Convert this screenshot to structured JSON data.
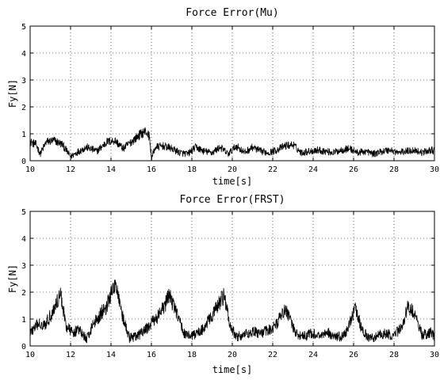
{
  "chart_data": [
    {
      "type": "line",
      "title": "Force Error(Mu)",
      "xlabel": "time[s]",
      "ylabel": "Fy[N]",
      "xlim": [
        10,
        30
      ],
      "ylim": [
        0,
        5
      ],
      "xticks": [
        10,
        12,
        14,
        16,
        18,
        20,
        22,
        24,
        26,
        28,
        30
      ],
      "yticks": [
        0,
        1,
        2,
        3,
        4,
        5
      ],
      "grid": true,
      "color": "#000000",
      "noise": 0.18,
      "series": [
        {
          "x": [
            10,
            10.3,
            10.5,
            10.8,
            11.2,
            11.6,
            12.0,
            12.4,
            12.8,
            13.3,
            13.8,
            14.2,
            14.6,
            15.0,
            15.4,
            15.7,
            15.9,
            16.0,
            16.2,
            16.6,
            17.0,
            17.4,
            17.8,
            18.2,
            18.6,
            19.0,
            19.4,
            19.8,
            20.2,
            20.6,
            21.0,
            21.4,
            21.8,
            22.2,
            22.6,
            23.0,
            23.4,
            23.8,
            24.2,
            24.6,
            25.0,
            25.4,
            25.8,
            26.2,
            26.6,
            27.0,
            27.4,
            27.8,
            28.2,
            28.6,
            29.0,
            29.4,
            29.8,
            30
          ],
          "y": [
            0.7,
            0.6,
            0.25,
            0.7,
            0.75,
            0.6,
            0.15,
            0.35,
            0.5,
            0.35,
            0.7,
            0.75,
            0.45,
            0.7,
            0.95,
            1.1,
            0.9,
            0.1,
            0.5,
            0.55,
            0.45,
            0.3,
            0.25,
            0.5,
            0.35,
            0.3,
            0.5,
            0.25,
            0.55,
            0.3,
            0.5,
            0.35,
            0.3,
            0.4,
            0.55,
            0.6,
            0.3,
            0.35,
            0.4,
            0.35,
            0.3,
            0.4,
            0.45,
            0.3,
            0.35,
            0.25,
            0.35,
            0.4,
            0.3,
            0.35,
            0.4,
            0.3,
            0.4,
            0.35
          ]
        }
      ]
    },
    {
      "type": "line",
      "title": "Force Error(FRST)",
      "xlabel": "time[s]",
      "ylabel": "Fy[N]",
      "xlim": [
        10,
        30
      ],
      "ylim": [
        0,
        5
      ],
      "xticks": [
        10,
        12,
        14,
        16,
        18,
        20,
        22,
        24,
        26,
        28,
        30
      ],
      "yticks": [
        0,
        1,
        2,
        3,
        4,
        5
      ],
      "grid": true,
      "color": "#000000",
      "noise": 0.25,
      "series": [
        {
          "x": [
            10,
            10.4,
            10.8,
            11.2,
            11.5,
            11.8,
            12.1,
            12.4,
            12.8,
            13.1,
            13.5,
            13.8,
            14.1,
            14.3,
            14.6,
            14.9,
            15.3,
            15.7,
            16.2,
            16.6,
            16.9,
            17.2,
            17.6,
            18.0,
            18.5,
            18.9,
            19.3,
            19.6,
            19.9,
            20.2,
            20.6,
            21.0,
            21.4,
            21.8,
            22.2,
            22.5,
            22.8,
            23.1,
            23.5,
            23.9,
            24.3,
            24.7,
            25.1,
            25.5,
            25.8,
            26.1,
            26.4,
            26.8,
            27.2,
            27.6,
            28.0,
            28.4,
            28.7,
            29.0,
            29.4,
            29.8,
            30
          ],
          "y": [
            0.5,
            0.8,
            0.85,
            1.4,
            1.95,
            0.7,
            0.5,
            0.6,
            0.25,
            0.8,
            1.2,
            1.5,
            2.1,
            2.2,
            1.0,
            0.3,
            0.35,
            0.6,
            1.0,
            1.4,
            1.9,
            1.3,
            0.5,
            0.35,
            0.6,
            1.0,
            1.5,
            1.9,
            0.7,
            0.35,
            0.4,
            0.55,
            0.45,
            0.6,
            0.8,
            1.3,
            1.2,
            0.5,
            0.35,
            0.45,
            0.4,
            0.5,
            0.35,
            0.35,
            0.8,
            1.4,
            0.6,
            0.25,
            0.4,
            0.45,
            0.4,
            0.7,
            1.5,
            1.2,
            0.4,
            0.5,
            0.35
          ]
        }
      ]
    }
  ]
}
